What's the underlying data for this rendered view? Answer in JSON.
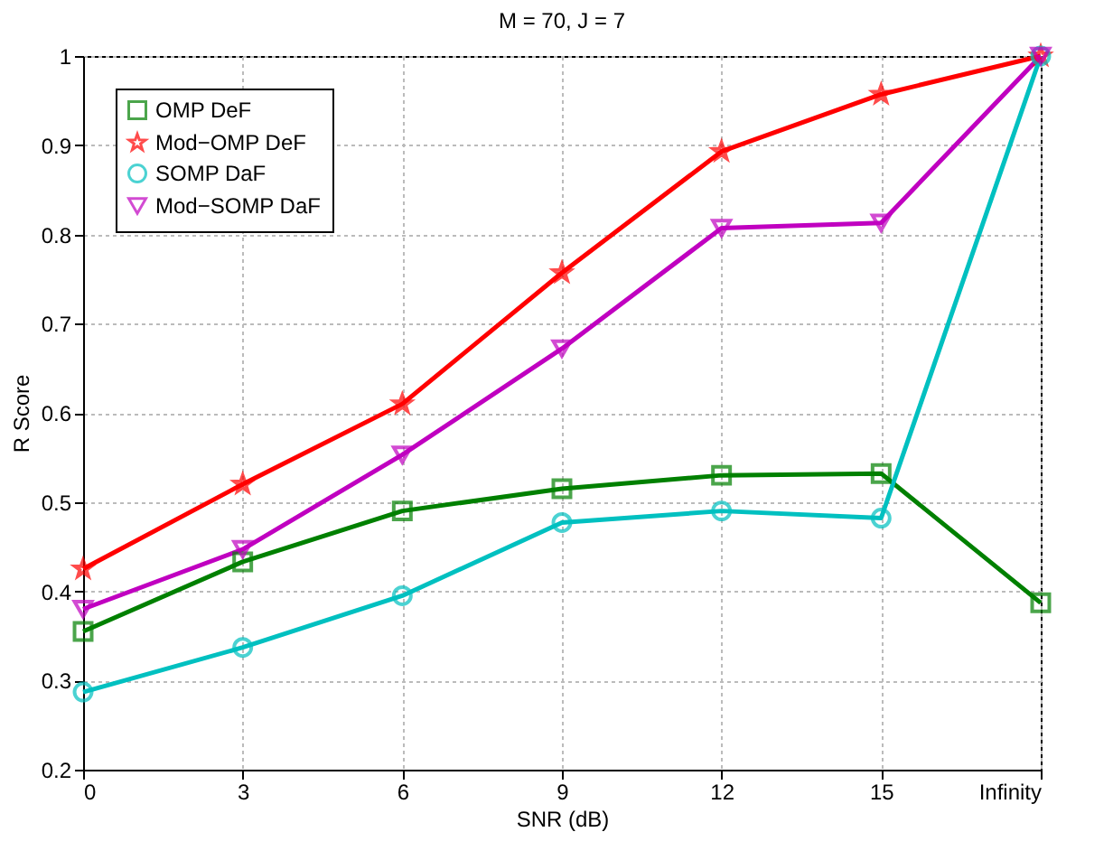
{
  "chart_data": {
    "type": "line",
    "title": "M = 70, J = 7",
    "xlabel": "SNR (dB)",
    "ylabel": "R Score",
    "categories": [
      "0",
      "3",
      "6",
      "9",
      "12",
      "15",
      "Infinity"
    ],
    "series": [
      {
        "name": "OMP DeF",
        "color": "#008000",
        "marker": "square",
        "values": [
          0.355,
          0.433,
          0.49,
          0.515,
          0.53,
          0.532,
          0.387
        ]
      },
      {
        "name": "Mod−OMP DeF",
        "color": "#ff0000",
        "marker": "star",
        "values": [
          0.425,
          0.52,
          0.61,
          0.757,
          0.893,
          0.957,
          1.0
        ]
      },
      {
        "name": "SOMP DaF",
        "color": "#00c0c0",
        "marker": "circle",
        "values": [
          0.287,
          0.337,
          0.395,
          0.477,
          0.49,
          0.482,
          1.0
        ]
      },
      {
        "name": "Mod−SOMP DaF",
        "color": "#c000c0",
        "marker": "triangle",
        "values": [
          0.38,
          0.447,
          0.553,
          0.672,
          0.807,
          0.813,
          1.0
        ]
      }
    ],
    "ylim": [
      0.2,
      1
    ],
    "yticks": [
      0.2,
      0.3,
      0.4,
      0.5,
      0.6,
      0.7,
      0.8,
      0.9,
      1
    ],
    "grid": true,
    "legend": "top left",
    "line_style": "solid"
  }
}
